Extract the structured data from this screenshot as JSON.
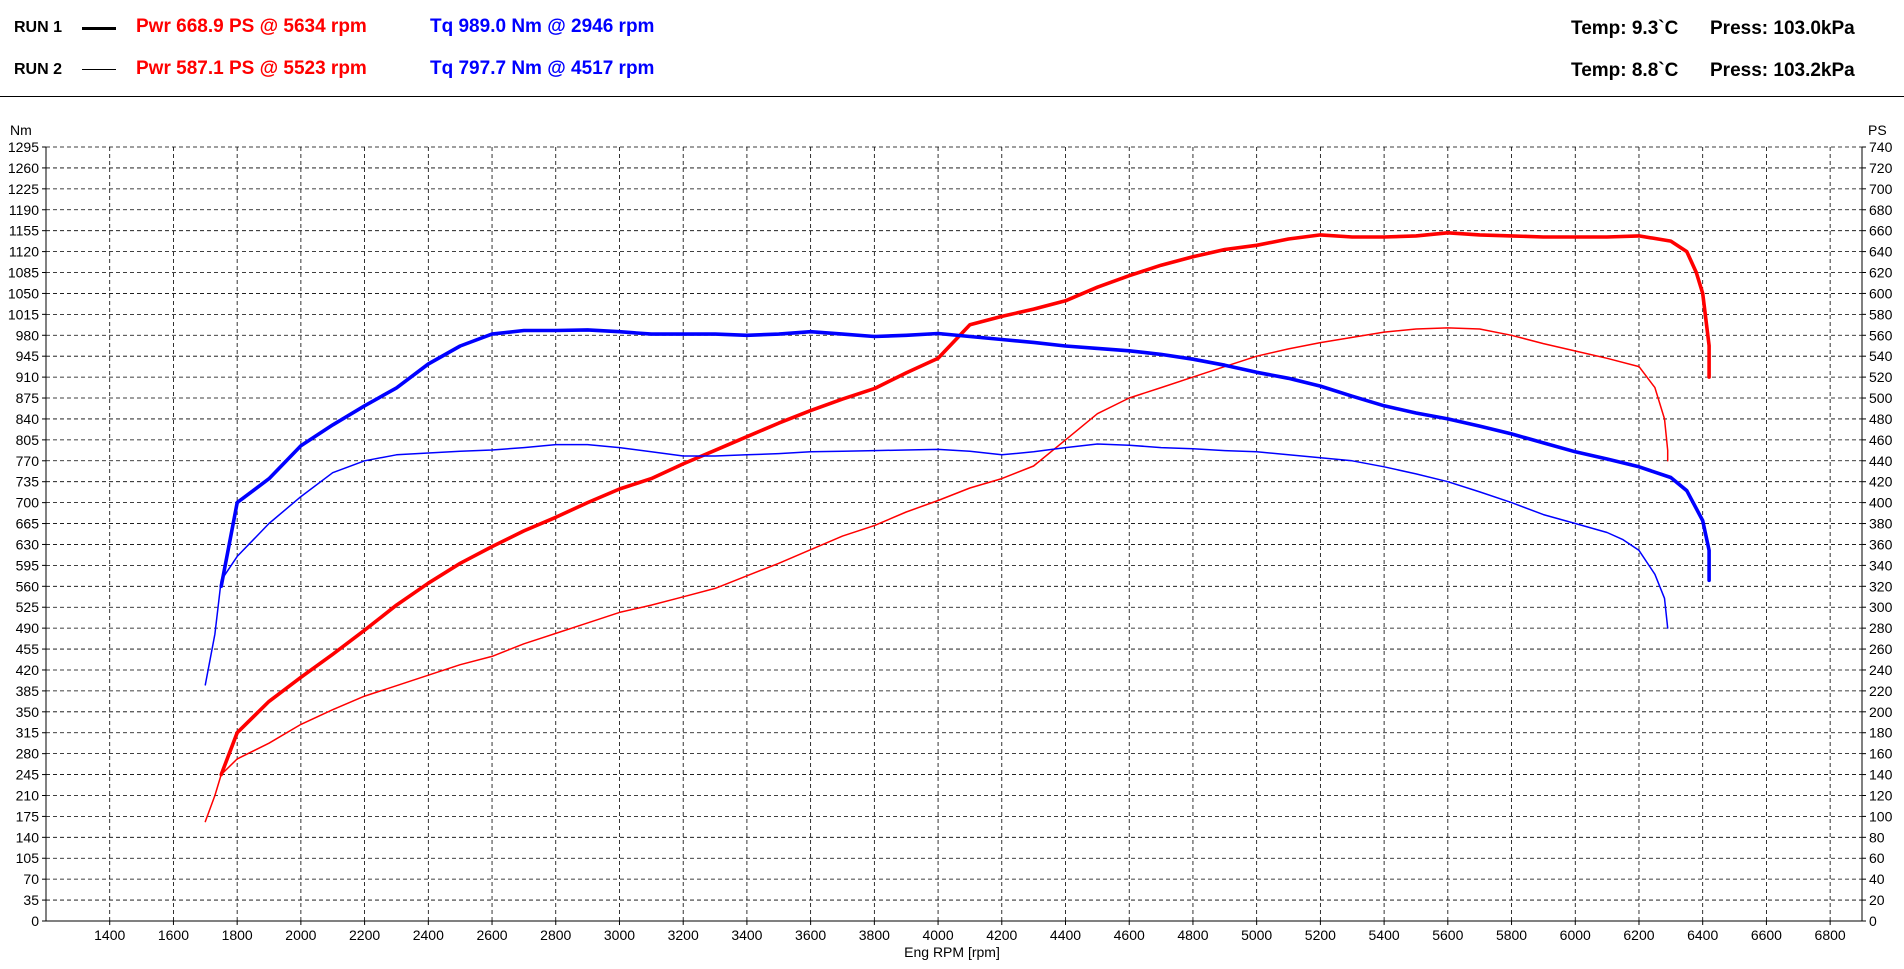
{
  "header": {
    "runs": [
      {
        "label": "RUN 1",
        "power_text": "Pwr  668.9 PS @ 5634 rpm",
        "torque_text": "Tq 989.0 Nm @ 2946 rpm",
        "temp_text": "Temp: 9.3`C",
        "press_text": "Press: 103.0kPa",
        "line_style": "thick"
      },
      {
        "label": "RUN 2",
        "power_text": "Pwr  587.1 PS @ 5523 rpm",
        "torque_text": "Tq 797.7 Nm @ 4517 rpm",
        "temp_text": "Temp: 8.8`C",
        "press_text": "Press: 103.2kPa",
        "line_style": "thin"
      }
    ]
  },
  "colors": {
    "power": "#ff0000",
    "torque": "#0000ff",
    "grid": "#000000",
    "background": "#ffffff"
  },
  "chart_data": {
    "type": "line",
    "xlabel": "Eng RPM [rpm]",
    "ylabel_left": "Nm",
    "ylabel_right": "PS",
    "xlim": [
      1200,
      6900
    ],
    "ylim_left": [
      0,
      1295
    ],
    "ylim_right": [
      0,
      740
    ],
    "x_ticks": [
      1400,
      1600,
      1800,
      2000,
      2200,
      2400,
      2600,
      2800,
      3000,
      3200,
      3400,
      3600,
      3800,
      4000,
      4200,
      4400,
      4600,
      4800,
      5000,
      5200,
      5400,
      5600,
      5800,
      6000,
      6200,
      6400,
      6600,
      6800
    ],
    "y_ticks_left": [
      0,
      35,
      70,
      105,
      140,
      175,
      210,
      245,
      280,
      315,
      350,
      385,
      420,
      455,
      490,
      525,
      560,
      595,
      630,
      665,
      700,
      735,
      770,
      805,
      840,
      875,
      910,
      945,
      980,
      1015,
      1050,
      1085,
      1120,
      1155,
      1190,
      1225,
      1260,
      1295
    ],
    "y_ticks_right": [
      0,
      20,
      40,
      60,
      80,
      100,
      120,
      140,
      160,
      180,
      200,
      220,
      240,
      260,
      280,
      300,
      320,
      340,
      360,
      380,
      400,
      420,
      440,
      460,
      480,
      500,
      520,
      540,
      560,
      580,
      600,
      620,
      640,
      660,
      680,
      700,
      720,
      740
    ],
    "grid": true,
    "series": [
      {
        "name": "RUN 1",
        "quantity": "Pwr",
        "unit": "PS",
        "axis": "right",
        "color": "#ff0000",
        "style": "thick",
        "points": [
          [
            1750,
            140
          ],
          [
            1800,
            180
          ],
          [
            1900,
            210
          ],
          [
            2000,
            233
          ],
          [
            2100,
            255
          ],
          [
            2200,
            278
          ],
          [
            2300,
            302
          ],
          [
            2400,
            323
          ],
          [
            2500,
            342
          ],
          [
            2600,
            358
          ],
          [
            2700,
            373
          ],
          [
            2800,
            386
          ],
          [
            2900,
            400
          ],
          [
            3000,
            413
          ],
          [
            3100,
            423
          ],
          [
            3200,
            437
          ],
          [
            3300,
            450
          ],
          [
            3400,
            463
          ],
          [
            3500,
            476
          ],
          [
            3600,
            488
          ],
          [
            3700,
            499
          ],
          [
            3800,
            509
          ],
          [
            3900,
            524
          ],
          [
            4000,
            538
          ],
          [
            4100,
            570
          ],
          [
            4200,
            578
          ],
          [
            4300,
            585
          ],
          [
            4400,
            593
          ],
          [
            4500,
            606
          ],
          [
            4600,
            617
          ],
          [
            4700,
            627
          ],
          [
            4800,
            635
          ],
          [
            4900,
            642
          ],
          [
            5000,
            646
          ],
          [
            5100,
            652
          ],
          [
            5200,
            656
          ],
          [
            5300,
            654
          ],
          [
            5400,
            654
          ],
          [
            5500,
            655
          ],
          [
            5600,
            658
          ],
          [
            5700,
            656
          ],
          [
            5800,
            655
          ],
          [
            5900,
            654
          ],
          [
            6000,
            654
          ],
          [
            6100,
            654
          ],
          [
            6200,
            655
          ],
          [
            6300,
            650
          ],
          [
            6350,
            640
          ],
          [
            6380,
            620
          ],
          [
            6400,
            600
          ],
          [
            6420,
            550
          ],
          [
            6420,
            520
          ]
        ]
      },
      {
        "name": "RUN 2",
        "quantity": "Pwr",
        "unit": "PS",
        "axis": "right",
        "color": "#ff0000",
        "style": "thin",
        "points": [
          [
            1700,
            95
          ],
          [
            1730,
            120
          ],
          [
            1750,
            140
          ],
          [
            1800,
            155
          ],
          [
            1900,
            170
          ],
          [
            2000,
            188
          ],
          [
            2100,
            202
          ],
          [
            2200,
            215
          ],
          [
            2300,
            225
          ],
          [
            2400,
            235
          ],
          [
            2500,
            245
          ],
          [
            2600,
            253
          ],
          [
            2700,
            265
          ],
          [
            2800,
            275
          ],
          [
            2900,
            285
          ],
          [
            3000,
            295
          ],
          [
            3100,
            302
          ],
          [
            3200,
            310
          ],
          [
            3300,
            318
          ],
          [
            3400,
            330
          ],
          [
            3500,
            342
          ],
          [
            3600,
            355
          ],
          [
            3700,
            368
          ],
          [
            3800,
            378
          ],
          [
            3900,
            391
          ],
          [
            4000,
            402
          ],
          [
            4100,
            414
          ],
          [
            4200,
            423
          ],
          [
            4300,
            435
          ],
          [
            4400,
            460
          ],
          [
            4500,
            485
          ],
          [
            4600,
            500
          ],
          [
            4700,
            510
          ],
          [
            4800,
            520
          ],
          [
            4900,
            530
          ],
          [
            5000,
            540
          ],
          [
            5100,
            547
          ],
          [
            5200,
            553
          ],
          [
            5300,
            558
          ],
          [
            5400,
            563
          ],
          [
            5500,
            566
          ],
          [
            5600,
            567
          ],
          [
            5700,
            566
          ],
          [
            5800,
            560
          ],
          [
            5900,
            552
          ],
          [
            6000,
            545
          ],
          [
            6100,
            538
          ],
          [
            6200,
            530
          ],
          [
            6250,
            510
          ],
          [
            6280,
            480
          ],
          [
            6290,
            450
          ],
          [
            6290,
            440
          ]
        ]
      },
      {
        "name": "RUN 1",
        "quantity": "Tq",
        "unit": "Nm",
        "axis": "left",
        "color": "#0000ff",
        "style": "thick",
        "points": [
          [
            1750,
            560
          ],
          [
            1800,
            700
          ],
          [
            1900,
            740
          ],
          [
            2000,
            795
          ],
          [
            2100,
            830
          ],
          [
            2200,
            862
          ],
          [
            2300,
            892
          ],
          [
            2400,
            932
          ],
          [
            2500,
            962
          ],
          [
            2600,
            982
          ],
          [
            2700,
            988
          ],
          [
            2800,
            988
          ],
          [
            2900,
            989
          ],
          [
            3000,
            986
          ],
          [
            3100,
            982
          ],
          [
            3200,
            982
          ],
          [
            3300,
            982
          ],
          [
            3400,
            980
          ],
          [
            3500,
            982
          ],
          [
            3600,
            986
          ],
          [
            3700,
            982
          ],
          [
            3800,
            978
          ],
          [
            3900,
            980
          ],
          [
            4000,
            983
          ],
          [
            4100,
            978
          ],
          [
            4200,
            973
          ],
          [
            4300,
            968
          ],
          [
            4400,
            962
          ],
          [
            4500,
            958
          ],
          [
            4600,
            954
          ],
          [
            4700,
            948
          ],
          [
            4800,
            940
          ],
          [
            4900,
            930
          ],
          [
            5000,
            918
          ],
          [
            5100,
            908
          ],
          [
            5200,
            895
          ],
          [
            5300,
            878
          ],
          [
            5400,
            862
          ],
          [
            5500,
            850
          ],
          [
            5600,
            840
          ],
          [
            5700,
            828
          ],
          [
            5800,
            815
          ],
          [
            5900,
            800
          ],
          [
            6000,
            785
          ],
          [
            6100,
            773
          ],
          [
            6200,
            760
          ],
          [
            6300,
            742
          ],
          [
            6350,
            720
          ],
          [
            6400,
            670
          ],
          [
            6420,
            620
          ],
          [
            6420,
            570
          ]
        ]
      },
      {
        "name": "RUN 2",
        "quantity": "Tq",
        "unit": "Nm",
        "axis": "left",
        "color": "#0000ff",
        "style": "thin",
        "points": [
          [
            1700,
            395
          ],
          [
            1730,
            480
          ],
          [
            1750,
            570
          ],
          [
            1800,
            610
          ],
          [
            1900,
            665
          ],
          [
            2000,
            710
          ],
          [
            2100,
            750
          ],
          [
            2200,
            770
          ],
          [
            2300,
            780
          ],
          [
            2400,
            783
          ],
          [
            2500,
            786
          ],
          [
            2600,
            788
          ],
          [
            2700,
            792
          ],
          [
            2800,
            797
          ],
          [
            2900,
            797
          ],
          [
            3000,
            792
          ],
          [
            3100,
            785
          ],
          [
            3200,
            778
          ],
          [
            3300,
            778
          ],
          [
            3400,
            780
          ],
          [
            3500,
            782
          ],
          [
            3600,
            785
          ],
          [
            3700,
            786
          ],
          [
            3800,
            787
          ],
          [
            3900,
            788
          ],
          [
            4000,
            789
          ],
          [
            4100,
            786
          ],
          [
            4200,
            780
          ],
          [
            4300,
            785
          ],
          [
            4400,
            792
          ],
          [
            4500,
            798
          ],
          [
            4600,
            796
          ],
          [
            4700,
            792
          ],
          [
            4800,
            790
          ],
          [
            4900,
            787
          ],
          [
            5000,
            785
          ],
          [
            5100,
            780
          ],
          [
            5200,
            775
          ],
          [
            5300,
            770
          ],
          [
            5400,
            760
          ],
          [
            5500,
            748
          ],
          [
            5600,
            735
          ],
          [
            5700,
            718
          ],
          [
            5800,
            700
          ],
          [
            5900,
            680
          ],
          [
            6000,
            665
          ],
          [
            6100,
            650
          ],
          [
            6150,
            638
          ],
          [
            6200,
            620
          ],
          [
            6250,
            580
          ],
          [
            6280,
            540
          ],
          [
            6290,
            490
          ]
        ]
      }
    ]
  }
}
